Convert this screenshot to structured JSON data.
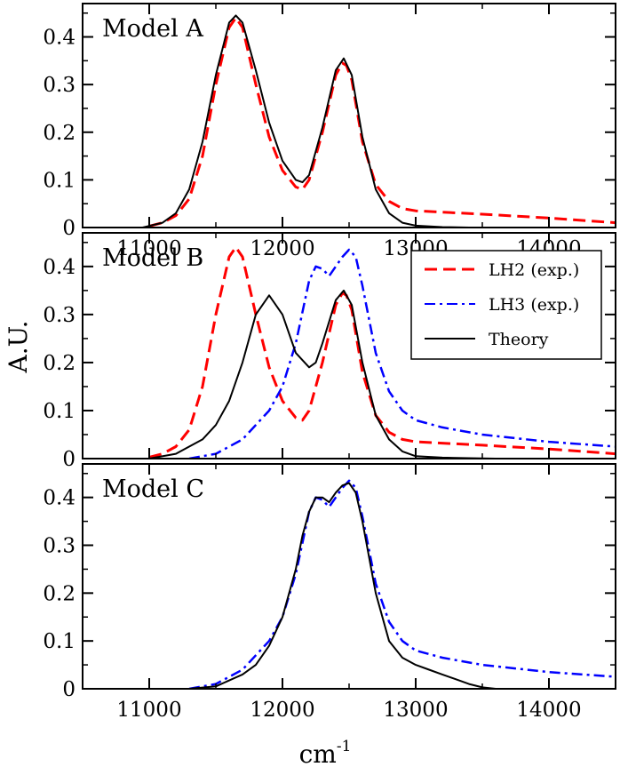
{
  "chart_data": [
    {
      "type": "line",
      "title": "Model A",
      "xlabel": "cm",
      "xlabel_superscript": "-1",
      "ylabel": "A.U.",
      "xlim": [
        10500,
        14500
      ],
      "ylim": [
        0,
        0.47
      ],
      "x_ticks": [
        11000,
        12000,
        13000,
        14000
      ],
      "x_tick_labels": [
        "11000",
        "12000",
        "13000",
        "14000"
      ],
      "y_ticks": [
        0,
        0.1,
        0.2,
        0.3,
        0.4
      ],
      "y_tick_labels": [
        "0",
        "0.1",
        "0.2",
        "0.3",
        "0.4"
      ],
      "series": [
        {
          "name": "LH2 (exp.)",
          "color": "#ff0000",
          "style": "dashed",
          "x": [
            11000,
            11100,
            11200,
            11300,
            11400,
            11500,
            11600,
            11650,
            11700,
            11800,
            11900,
            12000,
            12100,
            12150,
            12200,
            12300,
            12400,
            12450,
            12480,
            12520,
            12600,
            12700,
            12800,
            12900,
            13000,
            13500,
            14000,
            14500
          ],
          "y": [
            0.003,
            0.01,
            0.025,
            0.06,
            0.15,
            0.3,
            0.42,
            0.44,
            0.42,
            0.3,
            0.19,
            0.12,
            0.085,
            0.08,
            0.1,
            0.2,
            0.32,
            0.345,
            0.34,
            0.31,
            0.18,
            0.09,
            0.055,
            0.04,
            0.035,
            0.028,
            0.02,
            0.01
          ]
        },
        {
          "name": "Theory",
          "color": "#000000",
          "style": "solid",
          "x": [
            10950,
            11100,
            11200,
            11300,
            11400,
            11500,
            11600,
            11650,
            11700,
            11800,
            11900,
            12000,
            12100,
            12150,
            12200,
            12300,
            12400,
            12460,
            12520,
            12600,
            12700,
            12800,
            12900,
            13000,
            13200,
            13400
          ],
          "y": [
            0.0,
            0.01,
            0.03,
            0.08,
            0.18,
            0.32,
            0.43,
            0.445,
            0.43,
            0.33,
            0.22,
            0.14,
            0.1,
            0.095,
            0.11,
            0.21,
            0.33,
            0.355,
            0.32,
            0.19,
            0.08,
            0.03,
            0.01,
            0.004,
            0.001,
            0.0
          ]
        }
      ]
    },
    {
      "type": "line",
      "title": "Model B",
      "xlim": [
        10500,
        14500
      ],
      "ylim": [
        0,
        0.47
      ],
      "x_ticks": [
        11000,
        12000,
        13000,
        14000
      ],
      "y_ticks": [
        0,
        0.1,
        0.2,
        0.3,
        0.4
      ],
      "y_tick_labels": [
        "0",
        "0.1",
        "0.2",
        "0.3",
        "0.4"
      ],
      "legend_position": "top-right",
      "legend": [
        {
          "label": "LH2 (exp.)",
          "color": "#ff0000",
          "style": "dashed"
        },
        {
          "label": "LH3 (exp.)",
          "color": "#0000ff",
          "style": "dashdot"
        },
        {
          "label": "Theory",
          "color": "#000000",
          "style": "solid"
        }
      ],
      "series": [
        {
          "name": "LH2 (exp.)",
          "color": "#ff0000",
          "style": "dashed",
          "x": [
            11000,
            11100,
            11200,
            11300,
            11400,
            11500,
            11600,
            11650,
            11700,
            11800,
            11900,
            12000,
            12100,
            12150,
            12200,
            12300,
            12400,
            12450,
            12480,
            12520,
            12600,
            12700,
            12800,
            12900,
            13000,
            13500,
            14000,
            14500
          ],
          "y": [
            0.003,
            0.01,
            0.025,
            0.06,
            0.15,
            0.3,
            0.42,
            0.44,
            0.42,
            0.3,
            0.19,
            0.12,
            0.085,
            0.08,
            0.1,
            0.2,
            0.32,
            0.345,
            0.34,
            0.31,
            0.18,
            0.09,
            0.055,
            0.04,
            0.035,
            0.028,
            0.02,
            0.01
          ]
        },
        {
          "name": "LH3 (exp.)",
          "color": "#0000ff",
          "style": "dashdot",
          "x": [
            11300,
            11500,
            11700,
            11800,
            11900,
            12000,
            12100,
            12200,
            12250,
            12300,
            12350,
            12400,
            12450,
            12500,
            12550,
            12600,
            12700,
            12800,
            12900,
            13000,
            13200,
            13500,
            14000,
            14500
          ],
          "y": [
            0.0,
            0.01,
            0.04,
            0.07,
            0.1,
            0.15,
            0.24,
            0.37,
            0.4,
            0.395,
            0.38,
            0.4,
            0.42,
            0.435,
            0.42,
            0.36,
            0.22,
            0.14,
            0.1,
            0.08,
            0.065,
            0.05,
            0.035,
            0.025
          ]
        },
        {
          "name": "Theory",
          "color": "#000000",
          "style": "solid",
          "x": [
            11000,
            11200,
            11400,
            11500,
            11600,
            11700,
            11800,
            11900,
            12000,
            12100,
            12200,
            12250,
            12300,
            12400,
            12460,
            12520,
            12600,
            12700,
            12800,
            12900,
            13000,
            13200,
            13400,
            13600
          ],
          "y": [
            0.0,
            0.01,
            0.04,
            0.07,
            0.12,
            0.2,
            0.3,
            0.34,
            0.3,
            0.22,
            0.19,
            0.2,
            0.24,
            0.33,
            0.35,
            0.32,
            0.2,
            0.09,
            0.04,
            0.015,
            0.005,
            0.002,
            0.001,
            0.0
          ]
        }
      ]
    },
    {
      "type": "line",
      "title": "Model C",
      "xlim": [
        10500,
        14500
      ],
      "ylim": [
        0,
        0.47
      ],
      "x_ticks": [
        11000,
        12000,
        13000,
        14000
      ],
      "x_tick_labels": [
        "11000",
        "12000",
        "13000",
        "14000"
      ],
      "y_ticks": [
        0,
        0.1,
        0.2,
        0.3,
        0.4
      ],
      "y_tick_labels": [
        "0",
        "0.1",
        "0.2",
        "0.3",
        "0.4"
      ],
      "series": [
        {
          "name": "LH3 (exp.)",
          "color": "#0000ff",
          "style": "dashdot",
          "x": [
            11300,
            11500,
            11700,
            11800,
            11900,
            12000,
            12100,
            12200,
            12250,
            12300,
            12350,
            12400,
            12450,
            12500,
            12550,
            12600,
            12700,
            12800,
            12900,
            13000,
            13200,
            13500,
            14000,
            14500
          ],
          "y": [
            0.0,
            0.01,
            0.04,
            0.07,
            0.1,
            0.15,
            0.24,
            0.37,
            0.4,
            0.395,
            0.38,
            0.4,
            0.42,
            0.435,
            0.42,
            0.36,
            0.22,
            0.14,
            0.1,
            0.08,
            0.065,
            0.05,
            0.035,
            0.025
          ]
        },
        {
          "name": "Theory",
          "color": "#000000",
          "style": "solid",
          "x": [
            11300,
            11500,
            11700,
            11800,
            11900,
            12000,
            12100,
            12150,
            12200,
            12250,
            12300,
            12350,
            12400,
            12450,
            12500,
            12550,
            12600,
            12700,
            12800,
            12900,
            13000,
            13100,
            13200,
            13300,
            13400,
            13500,
            13600
          ],
          "y": [
            0.0,
            0.005,
            0.03,
            0.05,
            0.09,
            0.15,
            0.25,
            0.32,
            0.37,
            0.4,
            0.4,
            0.39,
            0.41,
            0.425,
            0.43,
            0.41,
            0.35,
            0.2,
            0.1,
            0.065,
            0.05,
            0.04,
            0.03,
            0.02,
            0.01,
            0.003,
            0.0
          ]
        }
      ]
    }
  ]
}
